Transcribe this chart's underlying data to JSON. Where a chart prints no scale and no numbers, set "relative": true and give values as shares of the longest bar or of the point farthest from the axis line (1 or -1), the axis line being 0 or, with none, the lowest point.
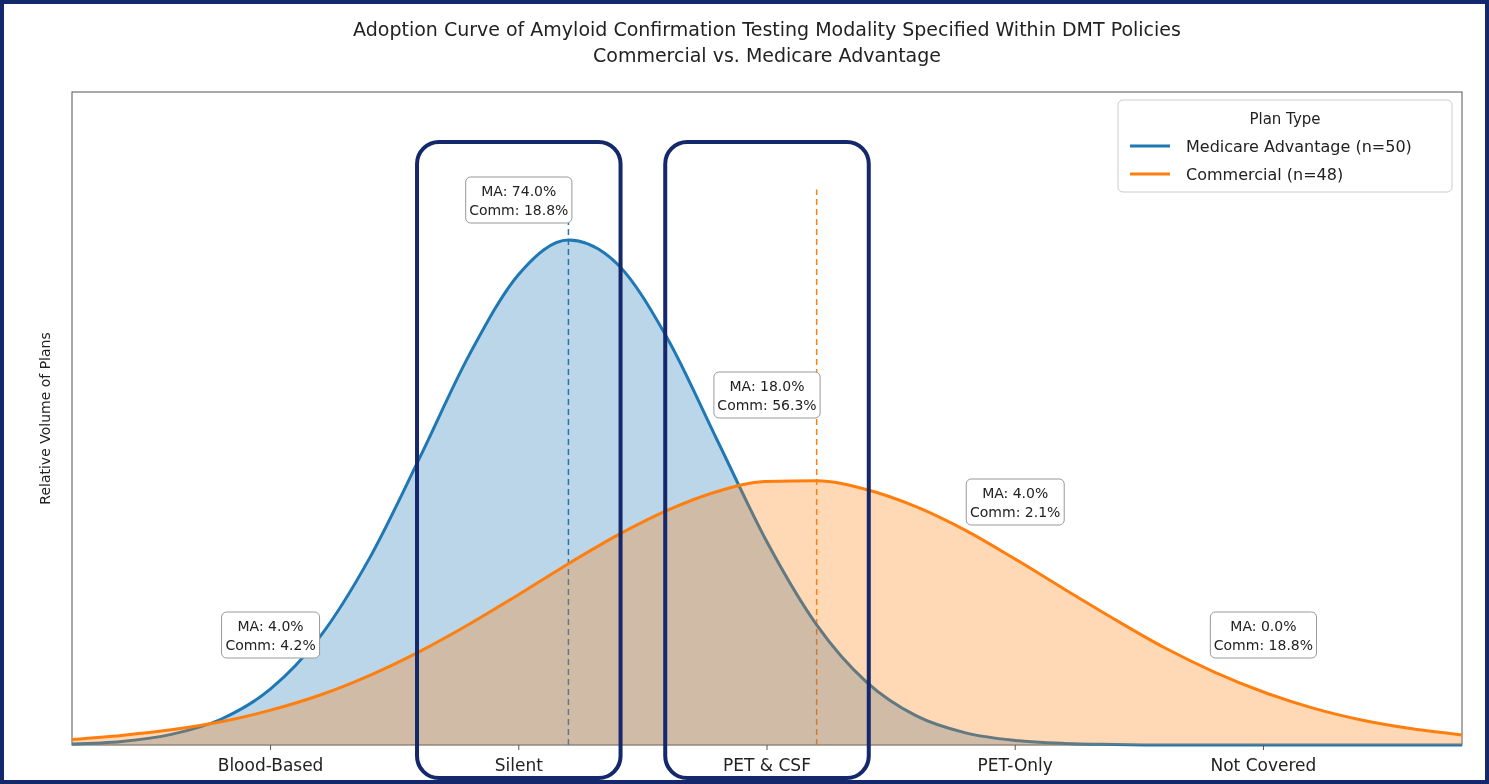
{
  "chart_data": {
    "type": "area",
    "title": "Adoption Curve of Amyloid Confirmation Testing Modality Specified Within DMT Policies",
    "subtitle": "Commercial vs. Medicare Advantage",
    "ylabel": "Relative Volume of Plans",
    "legend_title": "Plan Type",
    "legend": "top right",
    "relative": true,
    "categories": [
      null,
      null,
      null,
      null,
      "Blood-Based",
      null,
      null,
      null,
      null,
      "Silent",
      null,
      null,
      null,
      null,
      "PET & CSF",
      null,
      null,
      null,
      null,
      "PET-Only",
      null,
      null,
      null,
      null,
      "Not Covered",
      null,
      null,
      null,
      null
    ],
    "series": [
      {
        "name": "Medicare Advantage (n=50)",
        "color": "#1f77b4",
        "values": [
          0.002,
          0.007,
          0.021,
          0.051,
          0.111,
          0.215,
          0.371,
          0.568,
          0.772,
          0.932,
          1,
          0.951,
          0.804,
          0.603,
          0.402,
          0.238,
          0.125,
          0.058,
          0.024,
          0.009,
          0.003,
          0.001,
          0,
          0,
          0,
          0,
          0,
          0,
          0
        ]
      },
      {
        "name": "Commercial (n=48)",
        "color": "#ff7f0e",
        "values": [
          0.011,
          0.019,
          0.03,
          0.046,
          0.069,
          0.099,
          0.138,
          0.185,
          0.239,
          0.298,
          0.359,
          0.416,
          0.465,
          0.502,
          0.522,
          0.523,
          0.506,
          0.472,
          0.425,
          0.368,
          0.308,
          0.249,
          0.193,
          0.145,
          0.105,
          0.073,
          0.049,
          0.032,
          0.02
        ]
      }
    ],
    "annotations": [
      "MA: 4.0%\nComm: 4.2%",
      "MA: 74.0%\nComm: 18.8%",
      "MA: 18.0%\nComm: 56.3%",
      "MA: 4.0%\nComm: 2.1%",
      "MA: 0.0%\nComm: 18.8%"
    ]
  }
}
